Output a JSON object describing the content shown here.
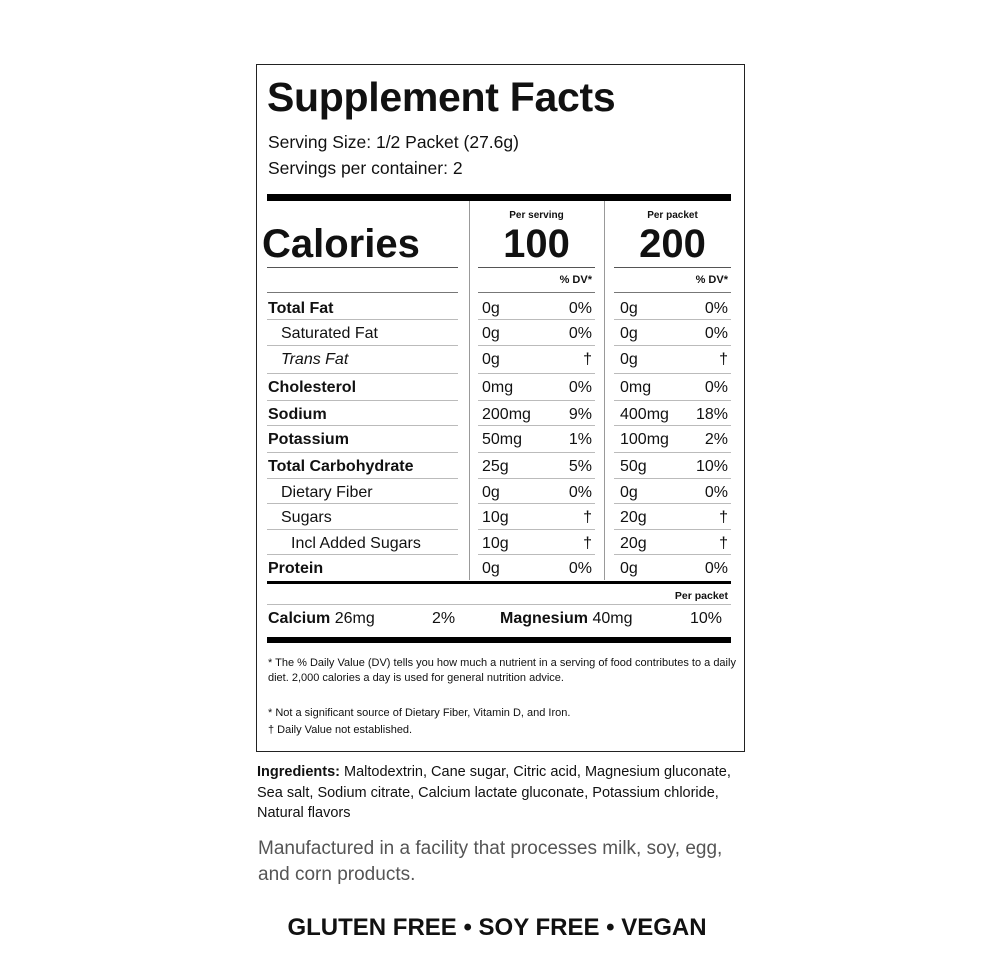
{
  "label": {
    "title": "Supplement Facts",
    "serving_size": "Serving Size: 1/2 Packet (27.6g)",
    "servings_per_container": "Servings per container: 2",
    "calories_label": "Calories",
    "per_serving_label": "Per serving",
    "per_packet_label": "Per packet",
    "calories_per_serving": "100",
    "calories_per_packet": "200",
    "dv_header": "% DV*",
    "nutrients": [
      {
        "name": "Total Fat",
        "style": "bold",
        "indent": 0,
        "serv_amt": "0g",
        "serv_dv": "0%",
        "pack_amt": "0g",
        "pack_dv": "0%"
      },
      {
        "name": "Saturated Fat",
        "style": "normal",
        "indent": 1,
        "serv_amt": "0g",
        "serv_dv": "0%",
        "pack_amt": "0g",
        "pack_dv": "0%"
      },
      {
        "name": "Trans Fat",
        "style": "italic",
        "indent": 1,
        "serv_amt": "0g",
        "serv_dv": "†",
        "pack_amt": "0g",
        "pack_dv": "†"
      },
      {
        "name": "Cholesterol",
        "style": "bold",
        "indent": 0,
        "serv_amt": "0mg",
        "serv_dv": "0%",
        "pack_amt": "0mg",
        "pack_dv": "0%"
      },
      {
        "name": "Sodium",
        "style": "bold",
        "indent": 0,
        "serv_amt": "200mg",
        "serv_dv": "9%",
        "pack_amt": "400mg",
        "pack_dv": "18%"
      },
      {
        "name": "Potassium",
        "style": "bold",
        "indent": 0,
        "serv_amt": "50mg",
        "serv_dv": "1%",
        "pack_amt": "100mg",
        "pack_dv": "2%"
      },
      {
        "name": "Total Carbohydrate",
        "style": "bold",
        "indent": 0,
        "serv_amt": "25g",
        "serv_dv": "5%",
        "pack_amt": "50g",
        "pack_dv": "10%"
      },
      {
        "name": "Dietary Fiber",
        "style": "normal",
        "indent": 1,
        "serv_amt": "0g",
        "serv_dv": "0%",
        "pack_amt": "0g",
        "pack_dv": "0%"
      },
      {
        "name": "Sugars",
        "style": "normal",
        "indent": 1,
        "serv_amt": "10g",
        "serv_dv": "†",
        "pack_amt": "20g",
        "pack_dv": "†"
      },
      {
        "name": "Incl Added Sugars",
        "style": "normal",
        "indent": 2,
        "serv_amt": "10g",
        "serv_dv": "†",
        "pack_amt": "20g",
        "pack_dv": "†"
      },
      {
        "name": "Protein",
        "style": "bold",
        "indent": 0,
        "serv_amt": "0g",
        "serv_dv": "0%",
        "pack_amt": "0g",
        "pack_dv": "0%"
      }
    ],
    "minerals_header": "Per packet",
    "calcium_name": "Calcium",
    "calcium_amt": "26mg",
    "calcium_dv": "2%",
    "magnesium_name": "Magnesium",
    "magnesium_amt": "40mg",
    "magnesium_dv": "10%",
    "footnote_dv": "* The % Daily Value (DV) tells you how much a nutrient in a serving of food contributes to a daily diet. 2,000 calories a day is used for general nutrition advice.",
    "footnote_insignificant": "* Not a significant source of Dietary Fiber, Vitamin D, and Iron.",
    "footnote_dagger": "† Daily Value not established."
  },
  "ingredients_label": "Ingredients:",
  "ingredients": " Maltodextrin, Cane sugar, Citric acid, Magnesium gluconate, Sea salt, Sodium citrate, Calcium lactate gluconate, Potassium chloride, Natural flavors",
  "allergen_statement": "Manufactured in a facility that processes milk, soy, egg, and corn products.",
  "claims": "GLUTEN FREE • SOY FREE • VEGAN"
}
